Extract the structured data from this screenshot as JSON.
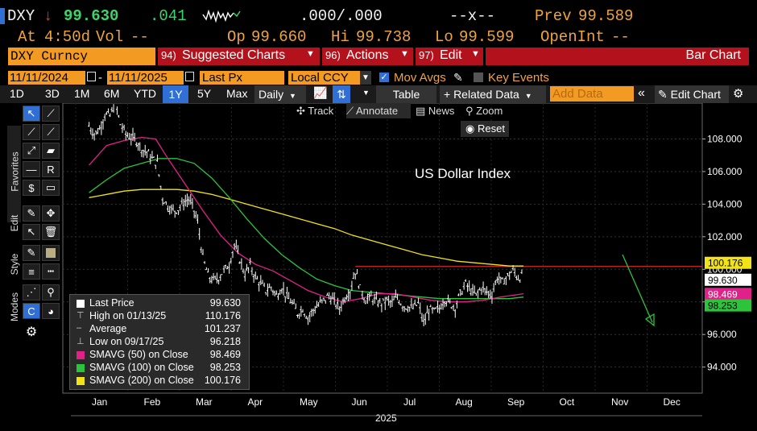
{
  "quote": {
    "ticker": "DXY",
    "arrow": "↓",
    "last": "99.630",
    "change": ".041",
    "bidask": ".000/.000",
    "size": "--x--",
    "prev_label": "Prev",
    "prev_value": "99.589",
    "at_label": "At",
    "at_time": "4:50d",
    "vol_label": "Vol",
    "vol_value": "--",
    "op_label": "Op",
    "op_value": "99.660",
    "hi_label": "Hi",
    "hi_value": "99.738",
    "lo_label": "Lo",
    "lo_value": "99.599",
    "openint_label": "OpenInt",
    "openint_value": "--"
  },
  "menubar": {
    "security": "DXY Curncy",
    "suggested_num": "94)",
    "suggested_label": "Suggested Charts",
    "actions_num": "96)",
    "actions_label": "Actions",
    "edit_num": "97)",
    "edit_label": "Edit",
    "chart_type": "Bar Chart"
  },
  "controls": {
    "start_date": "11/11/2024",
    "end_date": "11/11/2025",
    "field": "Last Px",
    "currency": "Local CCY",
    "mov_avgs_label": "Mov Avgs",
    "key_events_label": "Key Events"
  },
  "periods": {
    "items": [
      "1D",
      "3D",
      "1M",
      "6M",
      "YTD",
      "1Y",
      "5Y",
      "Max"
    ],
    "selected": "1Y",
    "frequency": "Daily",
    "table_label": "Table",
    "related_label": "+ Related Data",
    "add_data_placeholder": "Add Data",
    "edit_chart_label": "Edit Chart"
  },
  "chart_tools": {
    "track": "Track",
    "annotate": "Annotate",
    "news": "News",
    "zoom": "Zoom",
    "reset": "Reset"
  },
  "side_tabs": {
    "favorites": "Favorites",
    "edit": "Edit",
    "style": "Style",
    "modes": "Modes"
  },
  "legend": {
    "rows": [
      {
        "name": "Last Price",
        "value": "99.630",
        "color": "#ffffff"
      },
      {
        "name": "High on 01/13/25",
        "value": "110.176",
        "color": "#cfcfcf"
      },
      {
        "name": "Average",
        "value": "101.237",
        "color": "#cfcfcf"
      },
      {
        "name": "Low on 09/17/25",
        "value": "96.218",
        "color": "#cfcfcf"
      },
      {
        "name": "SMAVG (50)  on Close",
        "value": "98.469",
        "color": "#e0218a"
      },
      {
        "name": "SMAVG (100)  on Close",
        "value": "98.253",
        "color": "#2bc43b"
      },
      {
        "name": "SMAVG (200)  on Close",
        "value": "100.176",
        "color": "#f2e21a"
      }
    ]
  },
  "chart_data": {
    "type": "bar",
    "title": "US Dollar Index",
    "x_months": [
      "Jan",
      "Feb",
      "Mar",
      "Apr",
      "May",
      "Jun",
      "Jul",
      "Aug",
      "Sep",
      "Oct",
      "Nov",
      "Dec"
    ],
    "x_year": "2025",
    "y_ticks": [
      "108.000",
      "106.000",
      "104.000",
      "102.000",
      "100.000",
      "98.000",
      "96.000",
      "94.000"
    ],
    "ylim": [
      92.4,
      110.2
    ],
    "price_path": [
      [
        0,
        108.8
      ],
      [
        0.3,
        108.3
      ],
      [
        0.6,
        108.6
      ],
      [
        0.9,
        109.5
      ],
      [
        1.2,
        109.4
      ],
      [
        1.5,
        110.2
      ],
      [
        1.8,
        108.9
      ],
      [
        2.1,
        108.3
      ],
      [
        2.4,
        108.1
      ],
      [
        2.7,
        107.9
      ],
      [
        3.0,
        107.4
      ],
      [
        3.3,
        107.2
      ],
      [
        3.6,
        106.8
      ],
      [
        3.9,
        106.5
      ],
      [
        4.2,
        104.4
      ],
      [
        4.5,
        103.9
      ],
      [
        4.8,
        103.6
      ],
      [
        5.1,
        103.7
      ],
      [
        5.4,
        104.1
      ],
      [
        5.7,
        104.3
      ],
      [
        6.0,
        103.6
      ],
      [
        6.2,
        102.9
      ],
      [
        6.5,
        100.7
      ],
      [
        6.8,
        99.6
      ],
      [
        7.1,
        99.3
      ],
      [
        7.4,
        99.5
      ],
      [
        7.7,
        99.9
      ],
      [
        8.0,
        100.3
      ],
      [
        8.3,
        101.5
      ],
      [
        8.6,
        100.6
      ],
      [
        8.9,
        99.7
      ],
      [
        9.2,
        100.2
      ],
      [
        9.5,
        99.5
      ],
      [
        9.8,
        99.1
      ],
      [
        10.1,
        98.7
      ],
      [
        10.4,
        98.9
      ],
      [
        10.7,
        98.4
      ],
      [
        11.0,
        98.9
      ],
      [
        11.3,
        98.3
      ],
      [
        11.6,
        97.9
      ],
      [
        11.9,
        97.3
      ],
      [
        12.2,
        97.6
      ],
      [
        12.5,
        97.0
      ],
      [
        12.8,
        97.5
      ],
      [
        13.1,
        97.8
      ],
      [
        13.4,
        98.1
      ],
      [
        13.7,
        98.4
      ],
      [
        14.0,
        98.0
      ],
      [
        14.3,
        97.6
      ],
      [
        14.6,
        98.3
      ],
      [
        14.9,
        98.7
      ],
      [
        15.2,
        99.9
      ],
      [
        15.5,
        98.8
      ],
      [
        15.8,
        98.1
      ],
      [
        16.1,
        98.3
      ],
      [
        16.4,
        98.0
      ],
      [
        16.7,
        97.9
      ],
      [
        17.0,
        98.1
      ],
      [
        17.3,
        97.9
      ],
      [
        17.6,
        98.3
      ],
      [
        17.9,
        97.8
      ],
      [
        18.2,
        97.7
      ],
      [
        18.5,
        97.6
      ],
      [
        18.8,
        97.9
      ],
      [
        19.1,
        96.7
      ],
      [
        19.4,
        97.5
      ],
      [
        19.7,
        97.4
      ],
      [
        20.0,
        97.6
      ],
      [
        20.3,
        98.2
      ],
      [
        20.6,
        97.9
      ],
      [
        20.9,
        97.7
      ],
      [
        21.2,
        98.5
      ],
      [
        21.5,
        99.1
      ],
      [
        21.8,
        98.7
      ],
      [
        22.1,
        98.4
      ],
      [
        22.4,
        98.9
      ],
      [
        22.7,
        98.6
      ],
      [
        23.0,
        98.5
      ],
      [
        23.3,
        99.5
      ],
      [
        23.6,
        99.2
      ],
      [
        23.9,
        99.6
      ],
      [
        24.2,
        99.9
      ],
      [
        24.5,
        99.5
      ],
      [
        24.8,
        99.6
      ]
    ],
    "sma50_path": [
      [
        0,
        106.4
      ],
      [
        1,
        107.6
      ],
      [
        2,
        107.9
      ],
      [
        3,
        108.1
      ],
      [
        3.8,
        108.0
      ],
      [
        4.5,
        106.8
      ],
      [
        5.5,
        105.2
      ],
      [
        6.5,
        103.6
      ],
      [
        7.5,
        102.1
      ],
      [
        8.5,
        101.0
      ],
      [
        9.5,
        100.3
      ],
      [
        10.5,
        99.9
      ],
      [
        11.5,
        99.3
      ],
      [
        12.5,
        98.7
      ],
      [
        13.5,
        98.3
      ],
      [
        14.5,
        98.0
      ],
      [
        15.5,
        98.2
      ],
      [
        16.5,
        98.5
      ],
      [
        17.5,
        98.5
      ],
      [
        18.5,
        98.3
      ],
      [
        19.5,
        98.1
      ],
      [
        20.5,
        98.0
      ],
      [
        21.5,
        98.0
      ],
      [
        22.5,
        98.1
      ],
      [
        23.5,
        98.3
      ],
      [
        24.8,
        98.5
      ]
    ],
    "sma100_path": [
      [
        0,
        104.7
      ],
      [
        1,
        105.5
      ],
      [
        2,
        106.2
      ],
      [
        3,
        106.5
      ],
      [
        4,
        106.8
      ],
      [
        5,
        106.8
      ],
      [
        6,
        106.5
      ],
      [
        7,
        105.6
      ],
      [
        8,
        104.4
      ],
      [
        9,
        103.1
      ],
      [
        10,
        101.9
      ],
      [
        11,
        100.9
      ],
      [
        12,
        100.1
      ],
      [
        13,
        99.4
      ],
      [
        14,
        99.0
      ],
      [
        15,
        98.7
      ],
      [
        16,
        98.6
      ],
      [
        17,
        98.5
      ],
      [
        18,
        98.4
      ],
      [
        19,
        98.3
      ],
      [
        20,
        98.2
      ],
      [
        21,
        98.2
      ],
      [
        22,
        98.2
      ],
      [
        23,
        98.2
      ],
      [
        24,
        98.2
      ],
      [
        24.8,
        98.3
      ]
    ],
    "sma200_path": [
      [
        0,
        104.4
      ],
      [
        1,
        104.6
      ],
      [
        2,
        104.8
      ],
      [
        3,
        104.9
      ],
      [
        4,
        104.9
      ],
      [
        5,
        104.9
      ],
      [
        6,
        104.8
      ],
      [
        7,
        104.6
      ],
      [
        8,
        104.3
      ],
      [
        9,
        104.0
      ],
      [
        10,
        103.7
      ],
      [
        11,
        103.4
      ],
      [
        12,
        103.1
      ],
      [
        13,
        102.8
      ],
      [
        14,
        102.5
      ],
      [
        15,
        102.1
      ],
      [
        16,
        101.8
      ],
      [
        17,
        101.5
      ],
      [
        18,
        101.2
      ],
      [
        19,
        100.9
      ],
      [
        20,
        100.7
      ],
      [
        21,
        100.5
      ],
      [
        22,
        100.4
      ],
      [
        23,
        100.3
      ],
      [
        24,
        100.2
      ],
      [
        24.8,
        100.2
      ]
    ],
    "reference_line": 100.176,
    "labels": {
      "last": "99.630",
      "sma50": "98.469",
      "sma100": "98.253",
      "sma200": "100.176"
    }
  },
  "colors": {
    "accent": "#f29a22",
    "menubar_red": "#b3121c",
    "price": "#ffffff",
    "sma50": "#e0218a",
    "sma100": "#2bc43b",
    "sma200": "#f2e21a",
    "ref_line": "#d32b2b",
    "arrow": "#2bc43b"
  }
}
